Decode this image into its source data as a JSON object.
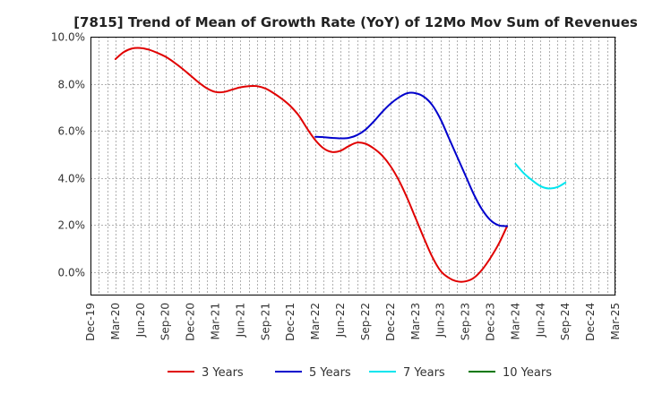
{
  "chart_data": {
    "type": "line",
    "title": "[7815]  Trend of Mean of Growth Rate (YoY) of 12Mo Mov Sum of Revenues",
    "xlabel": "",
    "ylabel": "",
    "ylim": [
      -1.0,
      10.0
    ],
    "yticks": [
      0,
      2,
      4,
      6,
      8,
      10
    ],
    "ytick_labels": [
      "0.0%",
      "2.0%",
      "4.0%",
      "6.0%",
      "8.0%",
      "10.0%"
    ],
    "x_start_index": 0,
    "x_end_index": 63,
    "xtick_labels": [
      "Dec-19",
      "Mar-20",
      "Jun-20",
      "Sep-20",
      "Dec-20",
      "Mar-21",
      "Jun-21",
      "Sep-21",
      "Dec-21",
      "Mar-22",
      "Jun-22",
      "Sep-22",
      "Dec-22",
      "Mar-23",
      "Jun-23",
      "Sep-23",
      "Dec-23",
      "Mar-24",
      "Jun-24",
      "Sep-24",
      "Dec-24",
      "Mar-25"
    ],
    "grid": true,
    "legend_position": "bottom",
    "series": [
      {
        "name": "3 Years",
        "color": "#e00000",
        "start_index": 3,
        "values": [
          9.05,
          9.35,
          9.5,
          9.52,
          9.45,
          9.32,
          9.15,
          8.92,
          8.65,
          8.35,
          8.05,
          7.8,
          7.65,
          7.65,
          7.75,
          7.85,
          7.9,
          7.9,
          7.8,
          7.6,
          7.35,
          7.05,
          6.65,
          6.1,
          5.6,
          5.25,
          5.1,
          5.15,
          5.35,
          5.5,
          5.45,
          5.25,
          4.95,
          4.5,
          3.9,
          3.15,
          2.3,
          1.45,
          0.65,
          0.05,
          -0.25,
          -0.4,
          -0.4,
          -0.25,
          0.1,
          0.6,
          1.2,
          1.95
        ]
      },
      {
        "name": "5 Years",
        "color": "#0000cc",
        "start_index": 27,
        "values": [
          5.75,
          5.73,
          5.7,
          5.68,
          5.7,
          5.82,
          6.05,
          6.4,
          6.8,
          7.15,
          7.42,
          7.6,
          7.6,
          7.45,
          7.1,
          6.5,
          5.7,
          4.9,
          4.1,
          3.3,
          2.65,
          2.2,
          1.98,
          1.95
        ]
      },
      {
        "name": "7 Years",
        "color": "#00e5ee",
        "start_index": 51,
        "values": [
          4.6,
          4.2,
          3.9,
          3.65,
          3.55,
          3.6,
          3.8
        ]
      },
      {
        "name": "10 Years",
        "color": "#007700",
        "start_index": 60,
        "values": []
      }
    ]
  }
}
